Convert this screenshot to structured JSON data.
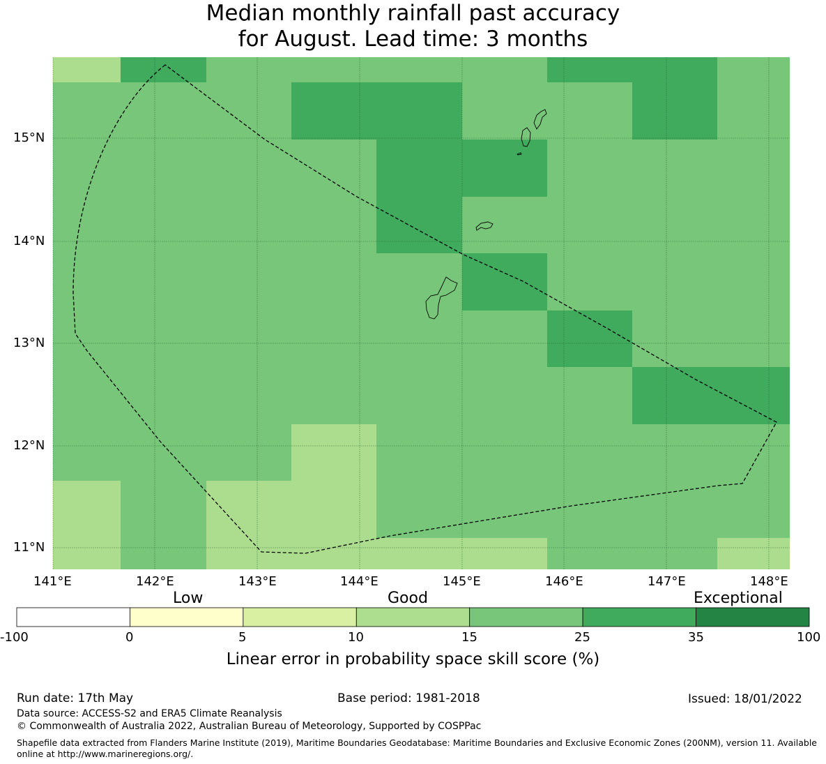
{
  "title_line1": "Median monthly rainfall past accuracy",
  "title_line2": "for August. Lead time: 3 months",
  "map": {
    "lon_ticks": [
      "141°E",
      "142°E",
      "143°E",
      "144°E",
      "145°E",
      "146°E",
      "147°E",
      "148°E"
    ],
    "lat_ticks": [
      "15°N",
      "14°N",
      "13°N",
      "12°N",
      "11°N"
    ],
    "cell_colors": {
      "c10_15": "#acdd8e",
      "c15_25": "#78c679",
      "c25_35": "#41ab5d"
    }
  },
  "colorbar": {
    "category_labels": [
      "Low",
      "Good",
      "Exceptional"
    ],
    "tick_labels": [
      "-100",
      "0",
      "5",
      "10",
      "15",
      "25",
      "35",
      "100"
    ],
    "colors": [
      "#ffffff",
      "#ffffcc",
      "#d9f0a3",
      "#addd8e",
      "#78c679",
      "#41ab5d",
      "#238443"
    ],
    "axis_label": "Linear error in probability space skill score (%)"
  },
  "footer": {
    "run_date": "Run date: 17th May",
    "base_period": "Base period: 1981-2018",
    "issued": "Issued: 18/01/2022",
    "data_source": "Data source: ACCESS-S2 and ERA5 Climate Reanalysis",
    "copyright": "© Commonwealth of Australia 2022, Australian Bureau of Meteorology, Supported by COSPPac",
    "shapefile": "Shapefile data extracted from Flanders Marine Institute (2019), Maritime Boundaries Geodatabase: Maritime Boundaries and Exclusive Economic Zones (200NM), version 11. Available online at http://www.marineregions.org/."
  }
}
